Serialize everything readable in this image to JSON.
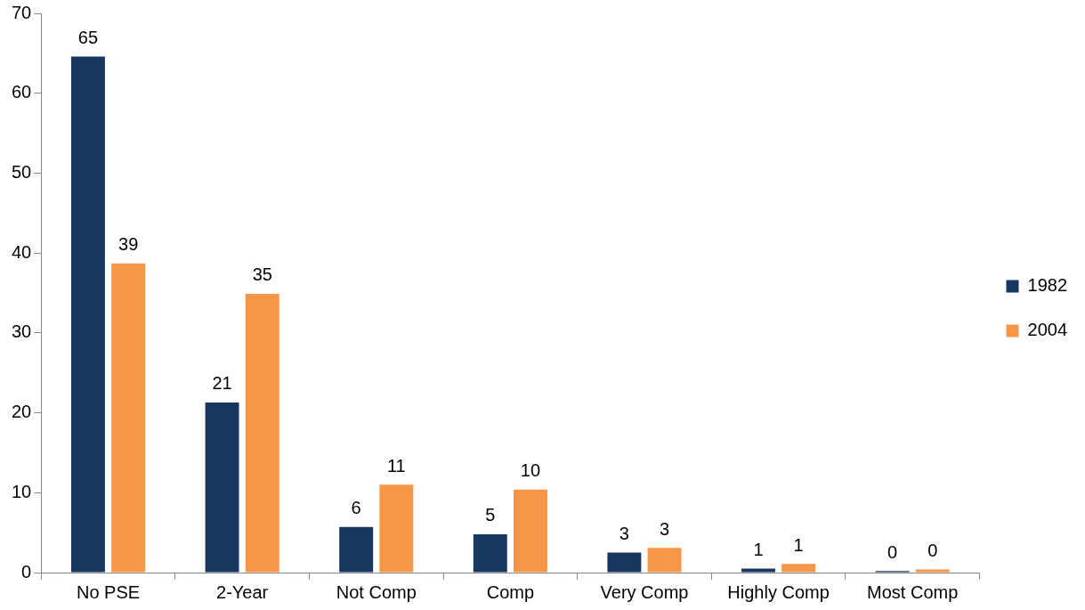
{
  "chart_data": {
    "type": "bar",
    "categories": [
      "No PSE",
      "2-Year",
      "Not Comp",
      "Comp",
      "Very Comp",
      "Highly Comp",
      "Most Comp"
    ],
    "series": [
      {
        "name": "1982",
        "color": "#17375e",
        "values": [
          64.6,
          21.3,
          5.7,
          4.8,
          2.5,
          0.5,
          0.2
        ],
        "value_labels": [
          "65",
          "21",
          "6",
          "5",
          "3",
          "1",
          "0"
        ]
      },
      {
        "name": "2004",
        "color": "#f79646",
        "values": [
          38.7,
          34.9,
          11.0,
          10.4,
          3.1,
          1.1,
          0.4
        ],
        "value_labels": [
          "39",
          "35",
          "11",
          "10",
          "3",
          "1",
          "0"
        ]
      }
    ],
    "ylim": [
      0,
      70
    ],
    "yticks": [
      0,
      10,
      20,
      30,
      40,
      50,
      60,
      70
    ],
    "grid": false,
    "legend": "right"
  }
}
